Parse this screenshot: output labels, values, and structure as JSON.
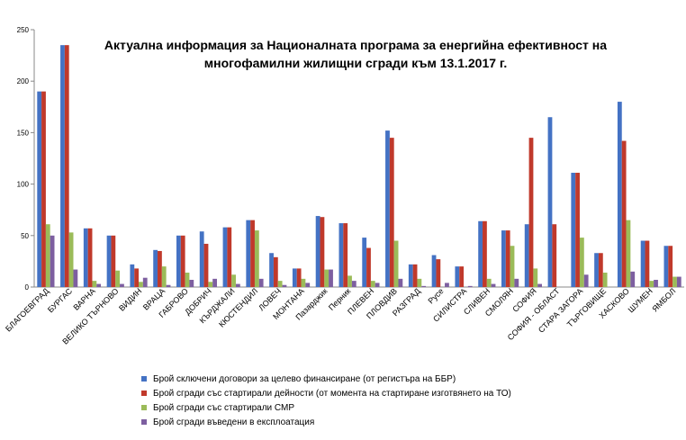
{
  "chart_data": {
    "type": "bar",
    "title_lines": [
      "Актуална информация за Националната програма за енергийна ефективност на",
      "многофамилни жилищни сгради към 13.1.2017 г."
    ],
    "xlabel": "",
    "ylabel": "",
    "ylim": [
      0,
      250
    ],
    "yticks": [
      0,
      50,
      100,
      150,
      200,
      250
    ],
    "grid": false,
    "legend_position": "bottom",
    "categories": [
      "БЛАГОЕВГРАД",
      "БУРГАС",
      "ВАРНА",
      "ВЕЛИКО ТЪРНОВО",
      "ВИДИН",
      "ВРАЦА",
      "ГАБРОВО",
      "ДОБРИЧ",
      "КЪРДЖАЛИ",
      "КЮСТЕНДИЛ",
      "ЛОВЕЧ",
      "МОНТАНА",
      "Пазарджик",
      "Перник",
      "ПЛЕВЕН",
      "ПЛОВДИВ",
      "РАЗГРАД",
      "Русе",
      "СИЛИСТРА",
      "СЛИВЕН",
      "СМОЛЯН",
      "СОФИЯ",
      "СОФИЯ - ОБЛАСТ",
      "СТАРА ЗАГОРА",
      "ТЪРГОВИЩЕ",
      "ХАСКОВО",
      "ШУМЕН",
      "ЯМБОЛ"
    ],
    "series": [
      {
        "name": "Брой сключени договори за целево финансиране (от регистъра на ББР)",
        "color": "#4472c4",
        "values": [
          190,
          235,
          57,
          50,
          22,
          36,
          50,
          54,
          58,
          65,
          33,
          18,
          69,
          62,
          48,
          152,
          22,
          31,
          20,
          64,
          55,
          61,
          165,
          111,
          33,
          180,
          45,
          40
        ]
      },
      {
        "name": "Брой сгради със стартирали  дейности  (от момента на стартиране изготвянето на ТО)",
        "color": "#c0392b",
        "values": [
          190,
          235,
          57,
          50,
          18,
          35,
          50,
          42,
          58,
          65,
          29,
          18,
          68,
          62,
          38,
          145,
          22,
          27,
          20,
          64,
          55,
          145,
          61,
          111,
          33,
          142,
          45,
          40
        ]
      },
      {
        "name": "Брой сгради със стартирали  СМР",
        "color": "#9bbb59",
        "values": [
          61,
          53,
          6,
          16,
          5,
          20,
          14,
          5,
          12,
          55,
          6,
          8,
          17,
          11,
          6,
          45,
          8,
          0,
          0,
          8,
          40,
          18,
          0,
          48,
          14,
          65,
          6,
          10
        ]
      },
      {
        "name": "Брой сгради въведени  в експлоатация",
        "color": "#7d5fa0",
        "values": [
          50,
          17,
          3,
          3,
          9,
          2,
          7,
          8,
          3,
          8,
          2,
          4,
          17,
          6,
          4,
          8,
          1,
          4,
          1,
          3,
          8,
          3,
          0,
          12,
          0,
          15,
          7,
          10
        ]
      }
    ]
  }
}
